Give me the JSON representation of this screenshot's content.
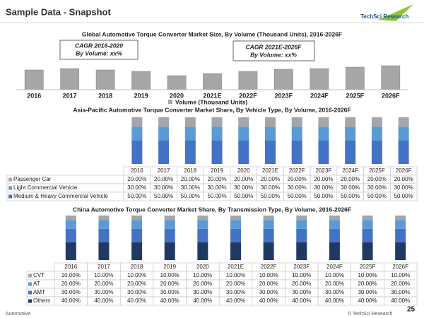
{
  "header": {
    "title": "Sample Data - Snapshot",
    "logo": "TechSci Research"
  },
  "footer": {
    "left": "Automotive",
    "right": "© TechSci Research",
    "page": 25
  },
  "chart_data": [
    {
      "type": "bar",
      "title": "Global Automotive Torque Converter Market Size, By Volume (Thousand Units), 2016-2026F",
      "categories": [
        "2016",
        "2017",
        "2018",
        "2019",
        "2020",
        "2021E",
        "2022F",
        "2023F",
        "2024F",
        "2025F",
        "2026F"
      ],
      "series": [
        {
          "name": "Volume (Thousand Units)",
          "color": "#a6a6a6",
          "values": [
            28,
            30,
            28,
            26,
            20,
            23,
            26,
            29,
            30,
            32,
            34
          ]
        }
      ],
      "ylim": [
        0,
        40
      ],
      "annotations": [
        {
          "title": "CAGR 2016-2020",
          "text": "By Volume: xx%"
        },
        {
          "title": "CAGR 2021E-2026F",
          "text": "By Volume: xx%"
        }
      ]
    },
    {
      "type": "stacked_bar",
      "title": "Asia-Pacific Automotive Torque Converter Market Share, By Vehicle Type, By Volume, 2016-2026F",
      "categories": [
        "2016",
        "2017",
        "2018",
        "2019",
        "2020",
        "2021E",
        "2022F",
        "2023F",
        "2024F",
        "2025F",
        "2026F"
      ],
      "ylim": [
        0,
        100
      ],
      "series": [
        {
          "name": "Passenger Car",
          "color": "#a6a6a6",
          "values": [
            20,
            20,
            20,
            20,
            20,
            20,
            20,
            20,
            20,
            20,
            20
          ],
          "value_labels": [
            "20.00%",
            "20.00%",
            "20.00%",
            "20.00%",
            "20.00%",
            "20.00%",
            "20.00%",
            "20.00%",
            "20.00%",
            "20.00%",
            "20.00%"
          ]
        },
        {
          "name": "Light Commercial Vehicle",
          "color": "#5b9bd5",
          "values": [
            30,
            30,
            30,
            30,
            30,
            30,
            30,
            30,
            30,
            30,
            30
          ],
          "value_labels": [
            "30.00%",
            "30.00%",
            "30.00%",
            "30.00%",
            "30.00%",
            "30.00%",
            "30.00%",
            "30.00%",
            "30.00%",
            "30.00%",
            "30.00%"
          ]
        },
        {
          "name": "Medium & Heavy Commercial Vehicle",
          "color": "#4472c4",
          "values": [
            50,
            50,
            50,
            50,
            50,
            50,
            50,
            50,
            50,
            50,
            50
          ],
          "value_labels": [
            "50.00%",
            "50.00%",
            "50.00%",
            "50.00%",
            "50.00%",
            "50.00%",
            "50.00%",
            "50.00%",
            "50.00%",
            "50.00%",
            "50.00%"
          ]
        }
      ]
    },
    {
      "type": "stacked_bar",
      "title": "China Automotive Torque Converter Market Share, By Transmission Type, By Volume, 2016-2026F",
      "categories": [
        "2016",
        "2017",
        "2018",
        "2019",
        "2020",
        "2021E",
        "2022F",
        "2023F",
        "2024F",
        "2025F",
        "2026F"
      ],
      "ylim": [
        0,
        100
      ],
      "series": [
        {
          "name": "CVT",
          "color": "#a6a6a6",
          "values": [
            10,
            10,
            10,
            10,
            10,
            10,
            10,
            10,
            10,
            10,
            10
          ],
          "value_labels": [
            "10.00%",
            "10.00%",
            "10.00%",
            "10.00%",
            "10.00%",
            "10.00%",
            "10.00%",
            "10.00%",
            "10.00%",
            "10.00%",
            "10.00%"
          ]
        },
        {
          "name": "AT",
          "color": "#5b9bd5",
          "values": [
            20,
            20,
            20,
            20,
            20,
            20,
            20,
            20,
            20,
            20,
            20
          ],
          "value_labels": [
            "20.00%",
            "20.00%",
            "20.00%",
            "20.00%",
            "20.00%",
            "20.00%",
            "20.00%",
            "20.00%",
            "20.00%",
            "20.00%",
            "20.00%"
          ]
        },
        {
          "name": "AMT",
          "color": "#4472c4",
          "values": [
            30,
            30,
            30,
            30,
            30,
            30,
            30,
            30,
            30,
            30,
            30
          ],
          "value_labels": [
            "30.00%",
            "30.00%",
            "30.00%",
            "30.00%",
            "30.00%",
            "30.00%",
            "30.00%",
            "30.00%",
            "30.00%",
            "30.00%",
            "30.00%"
          ]
        },
        {
          "name": "Others",
          "color": "#203864",
          "values": [
            40,
            40,
            40,
            40,
            40,
            40,
            40,
            40,
            40,
            40,
            40
          ],
          "value_labels": [
            "40.00%",
            "40.00%",
            "40.00%",
            "40.00%",
            "40.00%",
            "40.00%",
            "40.00%",
            "40.00%",
            "40.00%",
            "40.00%",
            "40.00%"
          ]
        }
      ]
    }
  ]
}
